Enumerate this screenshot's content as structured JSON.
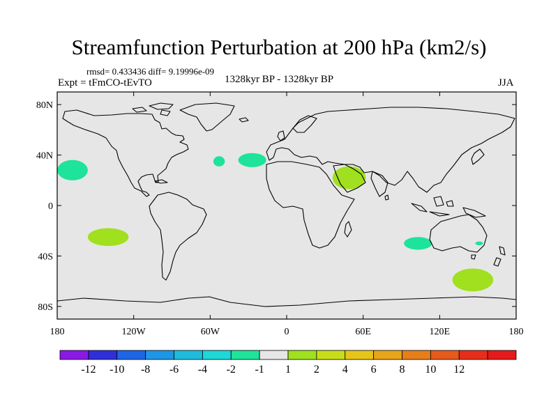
{
  "title": "Streamfunction Perturbation at 200 hPa (km2/s)",
  "stats": "rmsd= 0.433436 diff= 9.19996e-09",
  "experiment": "Expt = tFmCO-tEvTO",
  "period": "1328kyr BP - 1328kyr BP",
  "season": "JJA",
  "colors": {
    "ocean_background": "#e6e6e6",
    "coastline": "#000000",
    "anomaly_negative": "#1ee39a",
    "anomaly_positive": "#a0e01e"
  },
  "map": {
    "projection": "cylindrical-equidistant",
    "lon_range": [
      -180,
      180
    ],
    "lat_range": [
      -90,
      90
    ],
    "x_ticks": [
      {
        "lon": -180,
        "label": "180"
      },
      {
        "lon": -120,
        "label": "120W"
      },
      {
        "lon": -60,
        "label": "60W"
      },
      {
        "lon": 0,
        "label": "0"
      },
      {
        "lon": 60,
        "label": "60E"
      },
      {
        "lon": 120,
        "label": "120E"
      },
      {
        "lon": 180,
        "label": "180"
      }
    ],
    "y_ticks": [
      {
        "lat": 80,
        "label": "80N"
      },
      {
        "lat": 40,
        "label": "40N"
      },
      {
        "lat": 0,
        "label": "0"
      },
      {
        "lat": -40,
        "label": "40S"
      },
      {
        "lat": -80,
        "label": "80S"
      }
    ],
    "anomalies": [
      {
        "name": "north-pacific-east",
        "lon": -168,
        "lat": 28,
        "rlon": 12,
        "rlat": 8,
        "sign": "negative"
      },
      {
        "name": "north-atlantic-west",
        "lon": -53,
        "lat": 35,
        "rlon": 4.5,
        "rlat": 4,
        "sign": "negative"
      },
      {
        "name": "north-atlantic-central",
        "lon": -27,
        "lat": 36,
        "rlon": 11,
        "rlat": 5.5,
        "sign": "negative"
      },
      {
        "name": "arabia",
        "lon": 49,
        "lat": 22,
        "rlon": 13,
        "rlat": 9,
        "sign": "positive"
      },
      {
        "name": "south-pacific",
        "lon": -140,
        "lat": -25,
        "rlon": 16,
        "rlat": 7,
        "sign": "positive"
      },
      {
        "name": "south-indian-ocean",
        "lon": 103,
        "lat": -30,
        "rlon": 11,
        "rlat": 5,
        "sign": "negative"
      },
      {
        "name": "east-australia",
        "lon": 151,
        "lat": -30,
        "rlon": 3,
        "rlat": 1.5,
        "sign": "negative"
      },
      {
        "name": "southern-ocean-south-of-australia",
        "lon": 146,
        "lat": -59,
        "rlon": 16,
        "rlat": 9,
        "sign": "positive"
      }
    ]
  },
  "colorbar": {
    "colors": [
      "#8a19e6",
      "#2f2fd9",
      "#1e66e6",
      "#1e96e6",
      "#1ebcdc",
      "#1ed7d7",
      "#1ee39a",
      "#e6e6e6",
      "#a0e01e",
      "#c8dd1a",
      "#e6c51a",
      "#e6a51a",
      "#e67f1a",
      "#e65a1a",
      "#e62e1a",
      "#e61a1a"
    ],
    "labels": [
      "-12",
      "-10",
      "-8",
      "-6",
      "-4",
      "-2",
      "-1",
      "1",
      "2",
      "4",
      "6",
      "8",
      "10",
      "12"
    ]
  }
}
